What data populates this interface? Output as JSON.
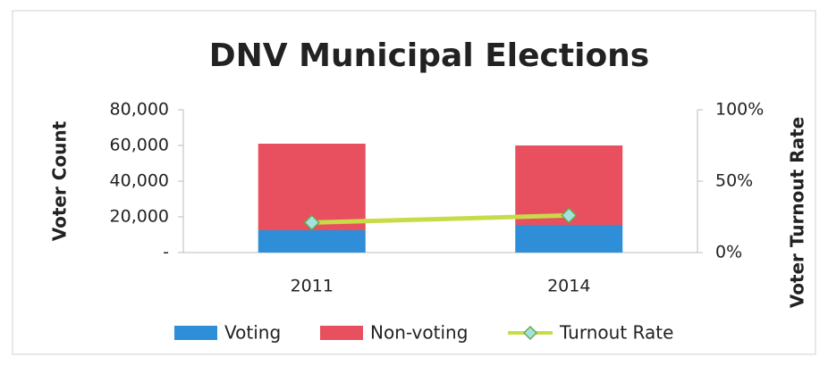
{
  "chart_data": {
    "type": "bar",
    "stacked": true,
    "title": "DNV Municipal Elections",
    "y_label": "Voter Count",
    "y2_label": "Voter Turnout Rate",
    "categories": [
      "2011",
      "2014"
    ],
    "series": [
      {
        "name": "Voting",
        "type": "bar",
        "color": "#2f8ed8",
        "values": [
          12500,
          15500
        ]
      },
      {
        "name": "Non-voting",
        "type": "bar",
        "color": "#e8505f",
        "values": [
          48500,
          44500
        ]
      },
      {
        "name": "Turnout Rate",
        "type": "line",
        "axis": "y2",
        "color": "#c8dc4a",
        "marker_color": "#a4e2df",
        "values": [
          21,
          26
        ]
      }
    ],
    "ylim": [
      0,
      80000
    ],
    "yticks": [
      {
        "value": 0,
        "label": "-"
      },
      {
        "value": 20000,
        "label": "20,000"
      },
      {
        "value": 40000,
        "label": "40,000"
      },
      {
        "value": 60000,
        "label": "60,000"
      },
      {
        "value": 80000,
        "label": "80,000"
      }
    ],
    "y2lim": [
      0,
      100
    ],
    "y2ticks": [
      {
        "value": 0,
        "label": "0%"
      },
      {
        "value": 50,
        "label": "50%"
      },
      {
        "value": 100,
        "label": "100%"
      }
    ],
    "legend": "bottom"
  }
}
